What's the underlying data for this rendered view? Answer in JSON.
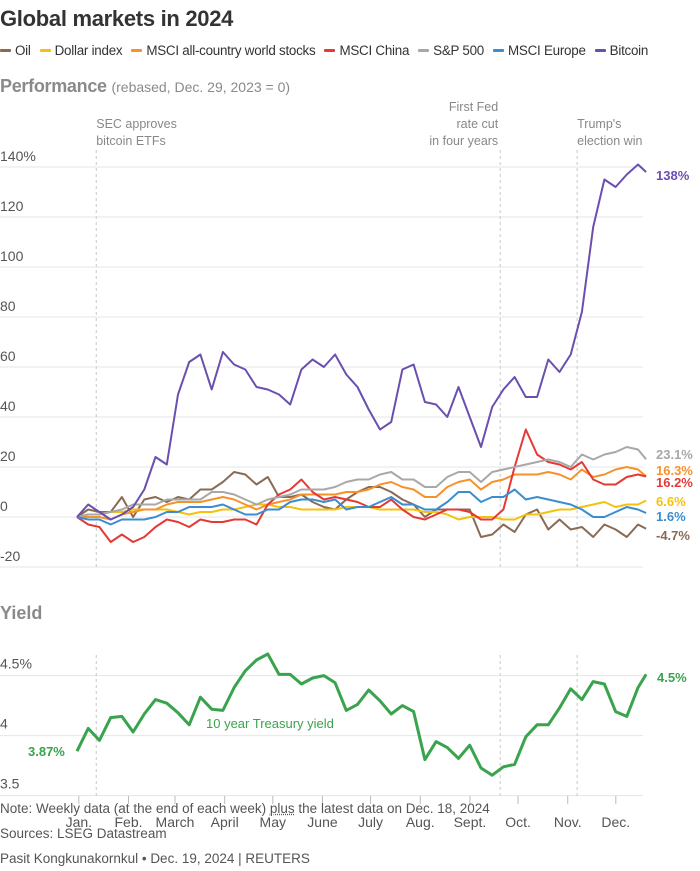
{
  "title": "Global markets in 2024",
  "legend": [
    {
      "label": "Oil",
      "color": "#8b6a53"
    },
    {
      "label": "Dollar index",
      "color": "#f4c20d"
    },
    {
      "label": "MSCI all-country world stocks",
      "color": "#f7922b"
    },
    {
      "label": "MSCI China",
      "color": "#e53935"
    },
    {
      "label": "S&P 500",
      "color": "#a8a8a8"
    },
    {
      "label": "MSCI Europe",
      "color": "#3a8dd0"
    },
    {
      "label": "Bitcoin",
      "color": "#6a4fb0"
    }
  ],
  "performance": {
    "title": "Performance",
    "subtitle": "(rebased, Dec. 29, 2023 = 0)"
  },
  "yield": {
    "title": "Yield"
  },
  "footer": {
    "note_before": "Note: Weekly data (at the end of each week) ",
    "note_plus": "plus",
    "note_after": " the latest data on Dec. 18, 2024",
    "sources": "Sources: LSEG Datastream",
    "credit": "Pasit Kongkunakornkul • Dec. 19, 2024 | REUTERS"
  },
  "chart_data": [
    {
      "type": "line",
      "title": "Performance",
      "ylim": [
        -20,
        140
      ],
      "yticks": [
        140,
        120,
        100,
        80,
        60,
        40,
        20,
        0,
        -20
      ],
      "ytick_labels": [
        "140%",
        "120",
        "100",
        "80",
        "60",
        "40",
        "20",
        "0",
        "-20"
      ],
      "grid": true,
      "xtick_dates": [
        "2024-01-01",
        "2024-02-01",
        "2024-03-01",
        "2024-04-01",
        "2024-05-01",
        "2024-06-01",
        "2024-07-01",
        "2024-08-01",
        "2024-09-01",
        "2024-10-01",
        "2024-11-01",
        "2024-12-01"
      ],
      "xtick_labels": [
        "Jan.",
        "Feb.",
        "March",
        "April",
        "May",
        "June",
        "July",
        "Aug.",
        "Sept.",
        "Oct.",
        "Nov.",
        "Dec."
      ],
      "x": [
        "2023-12-29",
        "2024-01-05",
        "2024-01-12",
        "2024-01-19",
        "2024-01-26",
        "2024-02-02",
        "2024-02-09",
        "2024-02-16",
        "2024-02-23",
        "2024-03-01",
        "2024-03-08",
        "2024-03-15",
        "2024-03-22",
        "2024-03-29",
        "2024-04-05",
        "2024-04-12",
        "2024-04-19",
        "2024-04-26",
        "2024-05-03",
        "2024-05-10",
        "2024-05-17",
        "2024-05-24",
        "2024-05-31",
        "2024-06-07",
        "2024-06-14",
        "2024-06-21",
        "2024-06-28",
        "2024-07-05",
        "2024-07-12",
        "2024-07-19",
        "2024-07-26",
        "2024-08-02",
        "2024-08-09",
        "2024-08-16",
        "2024-08-23",
        "2024-08-30",
        "2024-09-06",
        "2024-09-13",
        "2024-09-20",
        "2024-09-27",
        "2024-10-04",
        "2024-10-11",
        "2024-10-18",
        "2024-10-25",
        "2024-11-01",
        "2024-11-08",
        "2024-11-15",
        "2024-11-22",
        "2024-11-29",
        "2024-12-06",
        "2024-12-13",
        "2024-12-18"
      ],
      "series": [
        {
          "name": "Oil",
          "color": "#8b6a53",
          "end_label": "-4.7%",
          "values": [
            0,
            3,
            2,
            2,
            8,
            0,
            7,
            8,
            6,
            8,
            7,
            11,
            11,
            14,
            18,
            17,
            13,
            16,
            8,
            8,
            9,
            6,
            4,
            3,
            7,
            10,
            12,
            12,
            10,
            7,
            5,
            0,
            3,
            3,
            3,
            3,
            -8,
            -7,
            -3,
            -6,
            1,
            3,
            -5,
            -1,
            -5,
            -4,
            -8,
            -3,
            -5,
            -8,
            -3,
            -4.7
          ]
        },
        {
          "name": "Dollar index",
          "color": "#f4c20d",
          "end_label": "6.6%",
          "values": [
            0,
            1,
            1,
            2,
            2,
            3,
            3,
            3,
            3,
            2,
            1,
            2,
            2,
            3,
            3,
            4,
            5,
            5,
            4,
            4,
            3,
            3,
            3,
            3,
            4,
            4,
            4,
            3,
            3,
            3,
            3,
            2,
            2,
            1,
            -1,
            0,
            0,
            0,
            -1,
            -1,
            1,
            1,
            2,
            3,
            3,
            4,
            5,
            6,
            4,
            5,
            5,
            6.6
          ]
        },
        {
          "name": "MSCI all-country world stocks",
          "color": "#f7922b",
          "end_label": "16.3%",
          "values": [
            0,
            0,
            0,
            -1,
            1,
            2,
            3,
            3,
            5,
            6,
            6,
            6,
            7,
            8,
            7,
            5,
            3,
            5,
            6,
            7,
            9,
            9,
            9,
            9,
            10,
            10,
            11,
            13,
            14,
            12,
            11,
            8,
            8,
            12,
            14,
            15,
            11,
            14,
            15,
            17,
            17,
            17,
            18,
            17,
            15,
            19,
            16,
            17,
            19,
            20,
            19,
            16.3
          ]
        },
        {
          "name": "MSCI China",
          "color": "#e53935",
          "end_label": "16.2%",
          "values": [
            0,
            -3,
            -4,
            -10,
            -7,
            -10,
            -8,
            -4,
            -1,
            -2,
            -4,
            -1,
            -2,
            -2,
            -1,
            -1,
            -3,
            5,
            9,
            11,
            15,
            10,
            7,
            8,
            7,
            6,
            4,
            4,
            7,
            3,
            0,
            -1,
            1,
            3,
            3,
            2,
            -1,
            -1,
            3,
            20,
            35,
            25,
            22,
            21,
            19,
            22,
            15,
            13,
            13,
            16,
            17,
            16.2
          ]
        },
        {
          "name": "S&P 500",
          "color": "#a8a8a8",
          "end_label": "23.1%",
          "values": [
            0,
            1,
            1,
            2,
            3,
            5,
            5,
            5,
            7,
            7,
            7,
            7,
            10,
            10,
            9,
            7,
            5,
            7,
            8,
            9,
            11,
            11,
            11,
            12,
            14,
            15,
            15,
            17,
            18,
            15,
            15,
            12,
            12,
            16,
            18,
            18,
            14,
            18,
            19,
            20,
            21,
            22,
            23,
            22,
            20,
            25,
            23,
            25,
            26,
            28,
            27,
            23.1
          ]
        },
        {
          "name": "MSCI Europe",
          "color": "#3a8dd0",
          "end_label": "1.6%",
          "values": [
            0,
            -1,
            -1,
            -3,
            -1,
            -1,
            -1,
            0,
            2,
            2,
            4,
            4,
            4,
            5,
            3,
            1,
            1,
            3,
            3,
            6,
            7,
            7,
            6,
            7,
            3,
            4,
            4,
            6,
            8,
            5,
            5,
            3,
            3,
            6,
            10,
            10,
            6,
            8,
            8,
            11,
            7,
            8,
            7,
            6,
            5,
            3,
            0,
            0,
            2,
            4,
            3,
            1.6
          ]
        },
        {
          "name": "Bitcoin",
          "color": "#6a4fb0",
          "end_label": "138%",
          "values": [
            0,
            5,
            2,
            -1,
            1,
            4,
            11,
            24,
            21,
            49,
            62,
            65,
            51,
            66,
            61,
            59,
            52,
            51,
            49,
            45,
            59,
            63,
            60,
            65,
            57,
            52,
            43,
            35,
            38,
            59,
            61,
            46,
            45,
            40,
            52,
            40,
            28,
            44,
            51,
            56,
            48,
            48,
            63,
            58,
            65,
            82,
            116,
            135,
            132,
            137,
            141,
            138
          ]
        }
      ],
      "annotations": [
        {
          "date": "2024-01-10",
          "lines": [
            "SEC approves",
            "bitcoin ETFs"
          ]
        },
        {
          "date": "2024-09-18",
          "lines": [
            "First Fed",
            "rate cut",
            "in four years"
          ]
        },
        {
          "date": "2024-11-05",
          "lines": [
            "Trump's",
            "election win"
          ]
        }
      ]
    },
    {
      "type": "line",
      "title": "Yield",
      "ylim": [
        3.5,
        4.5
      ],
      "yticks": [
        4.5,
        4,
        3.5
      ],
      "ytick_labels": [
        "4.5%",
        "4",
        "3.5"
      ],
      "grid": true,
      "series": [
        {
          "name": "10 year Treasury yield",
          "color": "#3aa34d",
          "start_label": "3.87%",
          "end_label": "4.5%",
          "values": [
            3.87,
            4.06,
            3.96,
            4.15,
            4.16,
            4.03,
            4.18,
            4.3,
            4.27,
            4.19,
            4.09,
            4.32,
            4.22,
            4.21,
            4.4,
            4.54,
            4.63,
            4.68,
            4.51,
            4.51,
            4.43,
            4.48,
            4.5,
            4.44,
            4.21,
            4.26,
            4.38,
            4.29,
            4.18,
            4.25,
            4.2,
            3.8,
            3.95,
            3.9,
            3.81,
            3.92,
            3.73,
            3.67,
            3.74,
            3.76,
            3.99,
            4.09,
            4.09,
            4.23,
            4.39,
            4.3,
            4.45,
            4.43,
            4.2,
            4.16,
            4.4,
            4.51
          ]
        }
      ],
      "annotation_dates": [
        "2024-01-10",
        "2024-09-18",
        "2024-11-05"
      ]
    }
  ]
}
